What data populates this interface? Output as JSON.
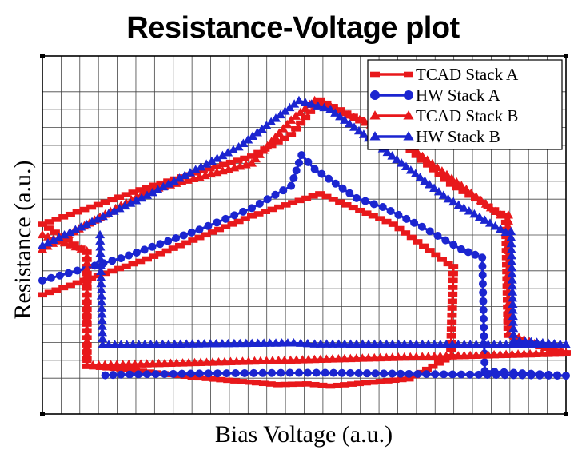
{
  "chart_data": {
    "type": "line",
    "title": "Resistance-Voltage plot",
    "xlabel": "Bias Voltage (a.u.)",
    "ylabel": "Resistance (a.u.)",
    "xlim": [
      -1,
      1
    ],
    "ylim": [
      0,
      1
    ],
    "grid": true,
    "legend_position": "top-right",
    "series": [
      {
        "name": "TCAD Stack A",
        "color": "#e8181b",
        "marker": "square",
        "points": [
          [
            -1,
            0.333
          ],
          [
            -0.6,
            0.433
          ],
          [
            -0.2,
            0.553
          ],
          [
            0.06,
            0.615
          ],
          [
            0.34,
            0.53
          ],
          [
            0.55,
            0.42
          ],
          [
            0.57,
            0.412
          ],
          [
            0.56,
            0.16
          ],
          [
            0.4,
            0.098
          ],
          [
            0.1,
            0.078
          ],
          [
            0.01,
            0.084
          ],
          [
            -0.1,
            0.082
          ],
          [
            -0.4,
            0.101
          ],
          [
            -0.7,
            0.126
          ],
          [
            -0.83,
            0.133
          ],
          [
            -0.83,
            0.452
          ],
          [
            -1,
            0.53
          ],
          [
            -0.6,
            0.633
          ],
          [
            -0.2,
            0.72
          ],
          [
            -0.05,
            0.78
          ],
          [
            0.06,
            0.877
          ],
          [
            0.34,
            0.776
          ],
          [
            0.56,
            0.642
          ],
          [
            0.75,
            0.56
          ],
          [
            0.77,
            0.555
          ],
          [
            0.78,
            0.22
          ],
          [
            0.9,
            0.188
          ],
          [
            1,
            0.171
          ]
        ]
      },
      {
        "name": "HW Stack A",
        "color": "#1b25d0",
        "marker": "circle",
        "points": [
          [
            -1,
            0.373
          ],
          [
            -0.7,
            0.435
          ],
          [
            -0.4,
            0.515
          ],
          [
            -0.2,
            0.575
          ],
          [
            -0.05,
            0.637
          ],
          [
            -0.01,
            0.723
          ],
          [
            0.04,
            0.684
          ],
          [
            0.2,
            0.603
          ],
          [
            0.3,
            0.578
          ],
          [
            0.45,
            0.523
          ],
          [
            0.6,
            0.46
          ],
          [
            0.68,
            0.437
          ],
          [
            0.69,
            0.12
          ],
          [
            0.8,
            0.115
          ],
          [
            1,
            0.107
          ],
          [
            0.4,
            0.112
          ],
          [
            0.08,
            0.115
          ],
          [
            -0.02,
            0.115
          ],
          [
            -0.4,
            0.113
          ],
          [
            -0.7,
            0.11
          ],
          [
            -0.76,
            0.108
          ]
        ]
      },
      {
        "name": "TCAD Stack B",
        "color": "#e8181b",
        "marker": "triangle",
        "points": [
          [
            -1,
            0.46
          ],
          [
            -0.6,
            0.622
          ],
          [
            -0.2,
            0.7
          ],
          [
            -0.05,
            0.82
          ],
          [
            0.04,
            0.875
          ],
          [
            0.34,
            0.78
          ],
          [
            0.75,
            0.555
          ],
          [
            0.78,
            0.555
          ],
          [
            0.78,
            0.225
          ],
          [
            0.9,
            0.19
          ],
          [
            1,
            0.17
          ],
          [
            -0.83,
            0.135
          ],
          [
            -0.83,
            0.455
          ],
          [
            -1,
            0.5
          ]
        ]
      },
      {
        "name": "HW Stack B",
        "color": "#1b25d0",
        "marker": "triangle",
        "points": [
          [
            -1,
            0.47
          ],
          [
            -0.6,
            0.61
          ],
          [
            -0.25,
            0.745
          ],
          [
            -0.02,
            0.875
          ],
          [
            0.1,
            0.85
          ],
          [
            0.3,
            0.74
          ],
          [
            0.55,
            0.6
          ],
          [
            0.77,
            0.507
          ],
          [
            0.79,
            0.509
          ],
          [
            0.8,
            0.205
          ],
          [
            1,
            0.193
          ],
          [
            0.04,
            0.195
          ],
          [
            -0.04,
            0.198
          ],
          [
            -0.7,
            0.193
          ],
          [
            -0.77,
            0.193
          ],
          [
            -0.78,
            0.5
          ]
        ]
      }
    ]
  }
}
